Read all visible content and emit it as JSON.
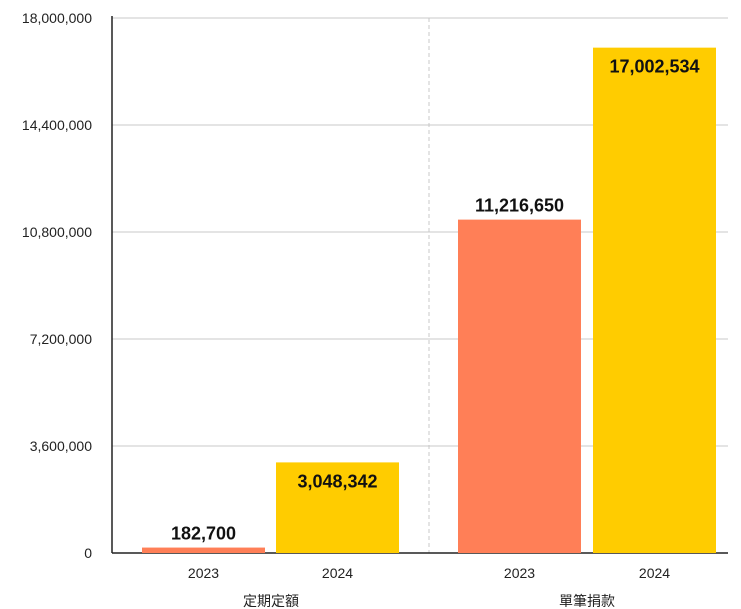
{
  "chart_data": {
    "type": "bar",
    "title": "",
    "xlabel": "",
    "ylabel": "",
    "ylim": [
      0,
      18000000
    ],
    "y_ticks": [
      0,
      3600000,
      7200000,
      10800000,
      14400000,
      18000000
    ],
    "y_tick_labels": [
      "0",
      "3,600,000",
      "7,200,000",
      "10,800,000",
      "14,400,000",
      "18,000,000"
    ],
    "grid": true,
    "legend": "none",
    "groups": [
      {
        "name": "定期定額",
        "bars": [
          {
            "category": "2023",
            "value": 182700,
            "label": "182,700",
            "color": "#FF7F57"
          },
          {
            "category": "2024",
            "value": 3048342,
            "label": "3,048,342",
            "color": "#FFCC00"
          }
        ]
      },
      {
        "name": "單筆捐款",
        "bars": [
          {
            "category": "2023",
            "value": 11216650,
            "label": "11,216,650",
            "color": "#FF7F57"
          },
          {
            "category": "2024",
            "value": 17002534,
            "label": "17,002,534",
            "color": "#FFCC00"
          }
        ]
      }
    ]
  }
}
